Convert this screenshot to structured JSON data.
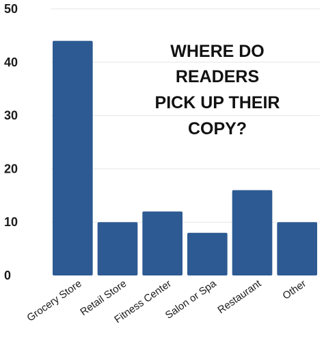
{
  "chart_data": {
    "type": "bar",
    "title": [
      "WHERE DO",
      "READERS",
      "PICK UP THEIR",
      "COPY?"
    ],
    "xlabel": "",
    "ylabel": "",
    "categories": [
      "Grocery Store",
      "Retail Store",
      "Fitness Center",
      "Salon or Spa",
      "Restaurant",
      "Other"
    ],
    "values": [
      44,
      10,
      12,
      8,
      16,
      10
    ],
    "ylim": [
      0,
      50
    ],
    "yticks": [
      "0",
      "10",
      "20",
      "30",
      "40",
      "50"
    ],
    "grid": true,
    "legend": "none",
    "bar_color": "#2d5a92"
  }
}
